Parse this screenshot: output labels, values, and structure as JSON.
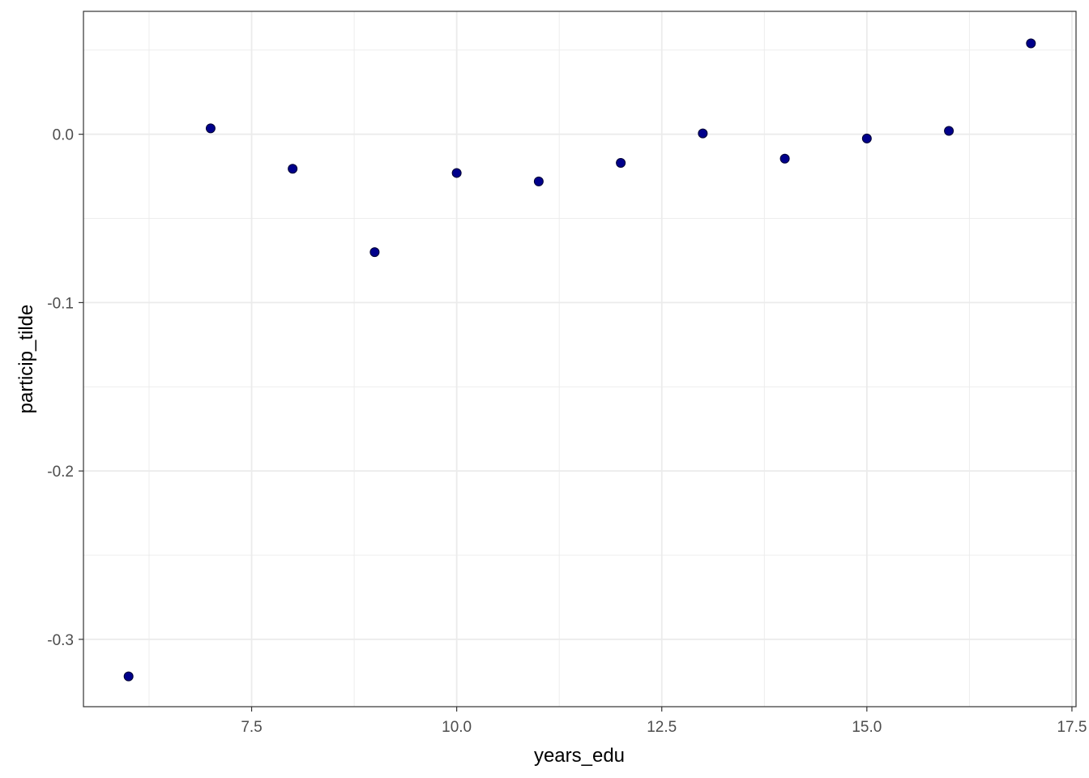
{
  "chart_data": {
    "type": "scatter",
    "title": "",
    "xlabel": "years_edu",
    "ylabel": "particip_tilde",
    "xlim": [
      5.45,
      17.55
    ],
    "ylim": [
      -0.34,
      0.073
    ],
    "x_ticks": [
      7.5,
      10.0,
      12.5,
      15.0,
      17.5
    ],
    "x_tick_labels": [
      "7.5",
      "10.0",
      "12.5",
      "15.0",
      "17.5"
    ],
    "y_ticks": [
      0.0,
      -0.1,
      -0.2,
      -0.3
    ],
    "y_tick_labels": [
      "0.0",
      "-0.1",
      "-0.2",
      "-0.3"
    ],
    "grid": true,
    "point_color": "#00008b",
    "x": [
      6,
      7,
      8,
      9,
      10,
      11,
      12,
      13,
      14,
      15,
      16,
      17
    ],
    "y": [
      -0.322,
      0.0035,
      -0.0205,
      -0.07,
      -0.023,
      -0.028,
      -0.017,
      0.0005,
      -0.0145,
      -0.0025,
      0.002,
      0.054
    ]
  }
}
